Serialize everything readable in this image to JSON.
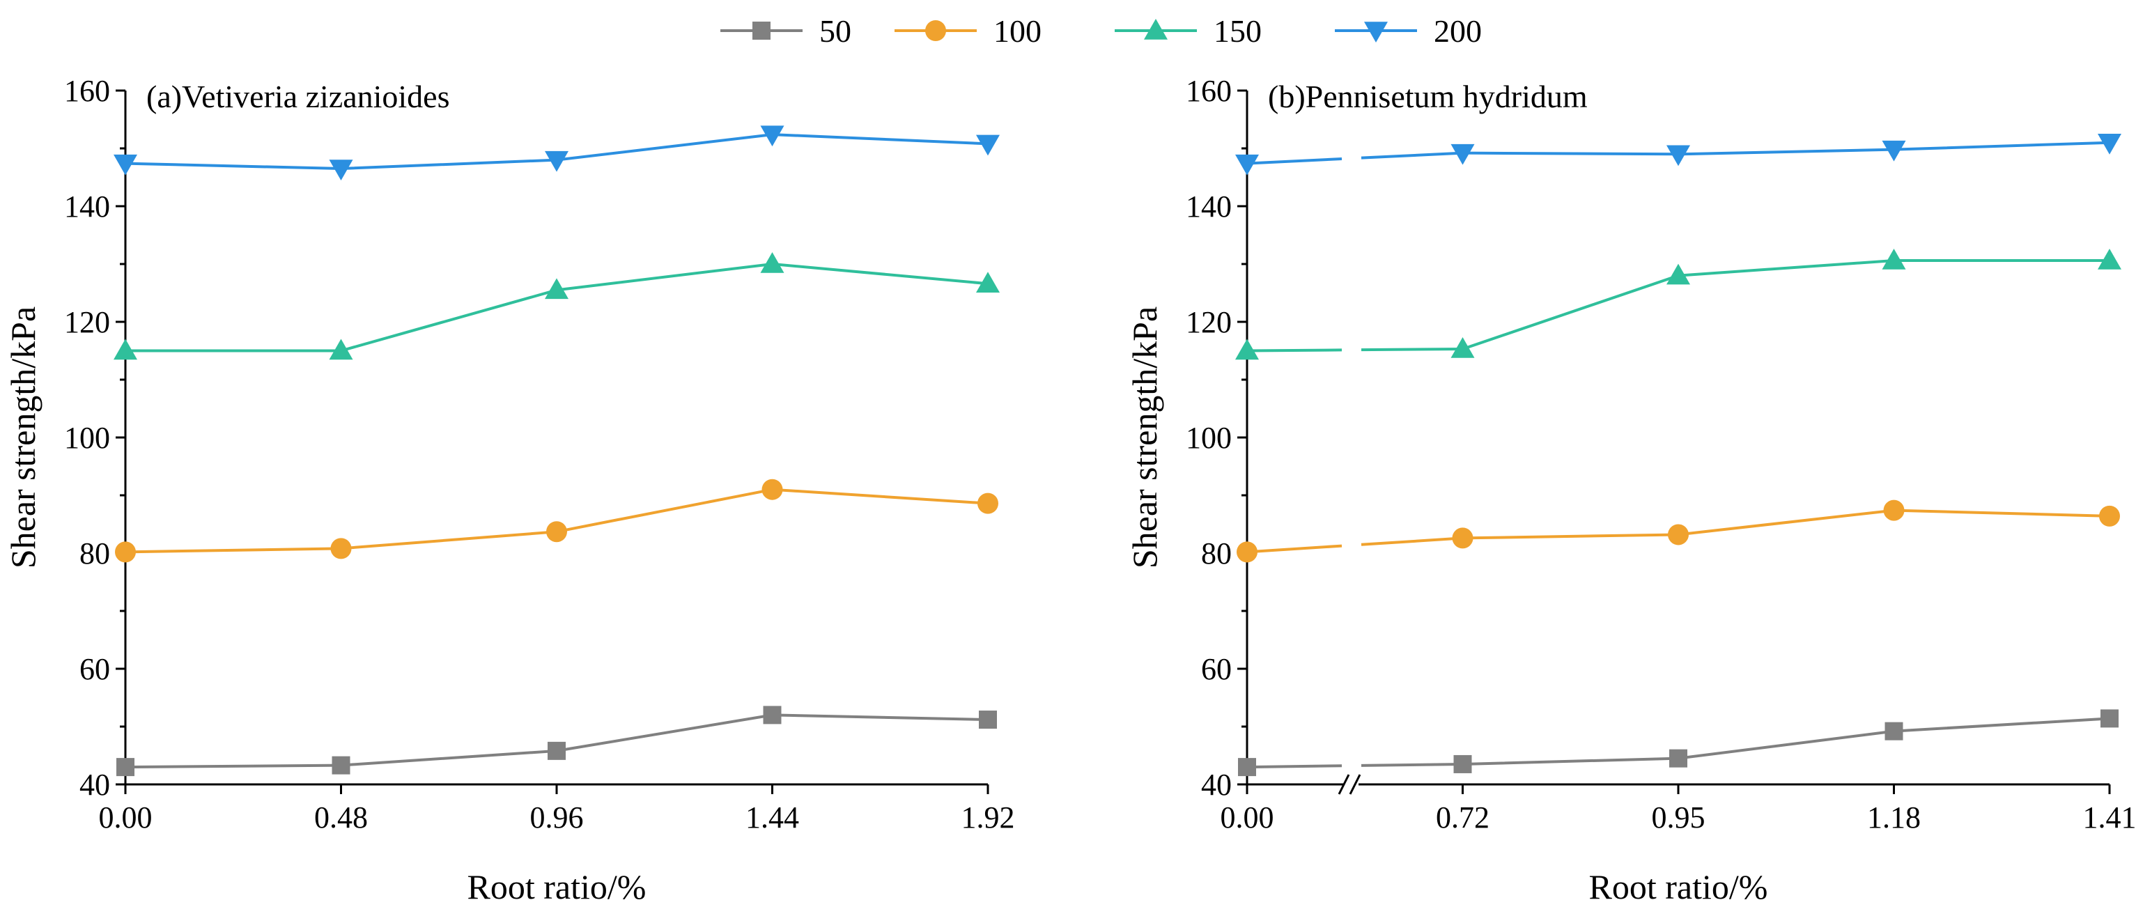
{
  "legend": [
    "50",
    "100",
    "150",
    "200"
  ],
  "series_colors": {
    "50": "#808080",
    "100": "#F0A22E",
    "150": "#2FBF9B",
    "200": "#2B8FE0"
  },
  "series_markers": {
    "50": "square",
    "100": "circle",
    "150": "triangle-up",
    "200": "triangle-down"
  },
  "chart_data": [
    {
      "type": "line",
      "title": "(a)Vetiveria zizanioides",
      "xlabel": "Root ratio/%",
      "ylabel": "Shear strength/kPa",
      "x_tick_labels": [
        "0.00",
        "0.48",
        "0.96",
        "1.44",
        "1.92"
      ],
      "x": [
        0.0,
        0.48,
        0.96,
        1.44,
        1.92
      ],
      "ylim": [
        40,
        160
      ],
      "y_ticks": [
        40,
        60,
        80,
        100,
        120,
        140,
        160
      ],
      "axis_break": false,
      "series": [
        {
          "name": "50",
          "values": [
            43.0,
            43.3,
            45.8,
            52.0,
            51.2
          ]
        },
        {
          "name": "100",
          "values": [
            80.2,
            80.8,
            83.7,
            91.0,
            88.6
          ]
        },
        {
          "name": "150",
          "values": [
            115.0,
            115.0,
            125.5,
            130.0,
            126.6
          ]
        },
        {
          "name": "200",
          "values": [
            147.4,
            146.5,
            148.0,
            152.4,
            150.8
          ]
        }
      ]
    },
    {
      "type": "line",
      "title": "(b)Pennisetum hydridum",
      "xlabel": "Root ratio/%",
      "ylabel": "Shear strength/kPa",
      "x_tick_labels": [
        "0.00",
        "0.72",
        "0.95",
        "1.18",
        "1.41"
      ],
      "x": [
        0.0,
        0.72,
        0.95,
        1.18,
        1.41
      ],
      "ylim": [
        40,
        160
      ],
      "y_ticks": [
        40,
        60,
        80,
        100,
        120,
        140,
        160
      ],
      "axis_break": true,
      "series": [
        {
          "name": "50",
          "values": [
            43.0,
            43.5,
            44.5,
            49.2,
            51.4
          ]
        },
        {
          "name": "100",
          "values": [
            80.2,
            82.6,
            83.2,
            87.4,
            86.4
          ]
        },
        {
          "name": "150",
          "values": [
            115.0,
            115.3,
            128.0,
            130.6,
            130.6
          ]
        },
        {
          "name": "200",
          "values": [
            147.4,
            149.2,
            149.0,
            149.8,
            151.0
          ]
        }
      ]
    }
  ]
}
